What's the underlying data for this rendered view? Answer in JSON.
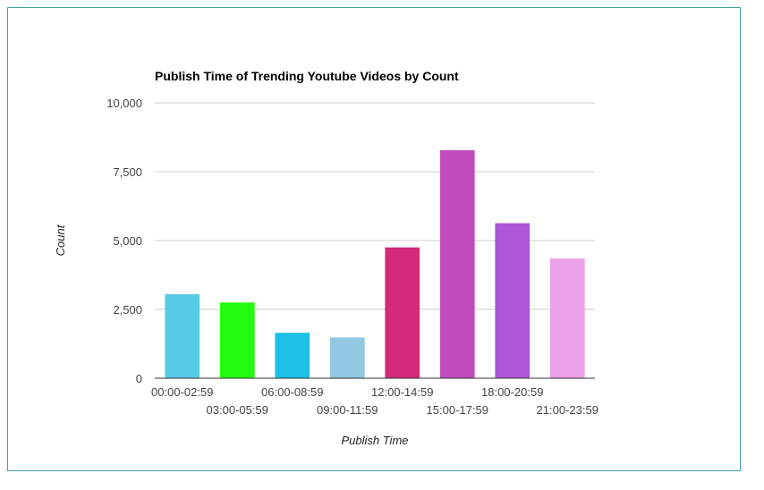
{
  "chart_data": {
    "type": "bar",
    "title": "Publish Time of Trending Youtube Videos by Count",
    "xlabel": "Publish Time",
    "ylabel": "Count",
    "categories": [
      "00:00-02:59",
      "03:00-05:59",
      "06:00-08:59",
      "09:00-11:59",
      "12:00-14:59",
      "15:00-17:59",
      "18:00-20:59",
      "21:00-23:59"
    ],
    "values": [
      3050,
      2750,
      1650,
      1480,
      4750,
      8280,
      5630,
      4350
    ],
    "colors": [
      "#56cbe5",
      "#22fc0e",
      "#1cc1e6",
      "#93c8e2",
      "#d32a7c",
      "#c04cbd",
      "#ac55d7",
      "#eda0ea"
    ],
    "ylim": [
      0,
      10000
    ],
    "yticks": [
      0,
      2500,
      5000,
      7500,
      10000
    ],
    "ytick_labels": [
      "0",
      "2,500",
      "5,000",
      "7,500",
      "10,000"
    ],
    "grid": true,
    "legend": "none"
  }
}
